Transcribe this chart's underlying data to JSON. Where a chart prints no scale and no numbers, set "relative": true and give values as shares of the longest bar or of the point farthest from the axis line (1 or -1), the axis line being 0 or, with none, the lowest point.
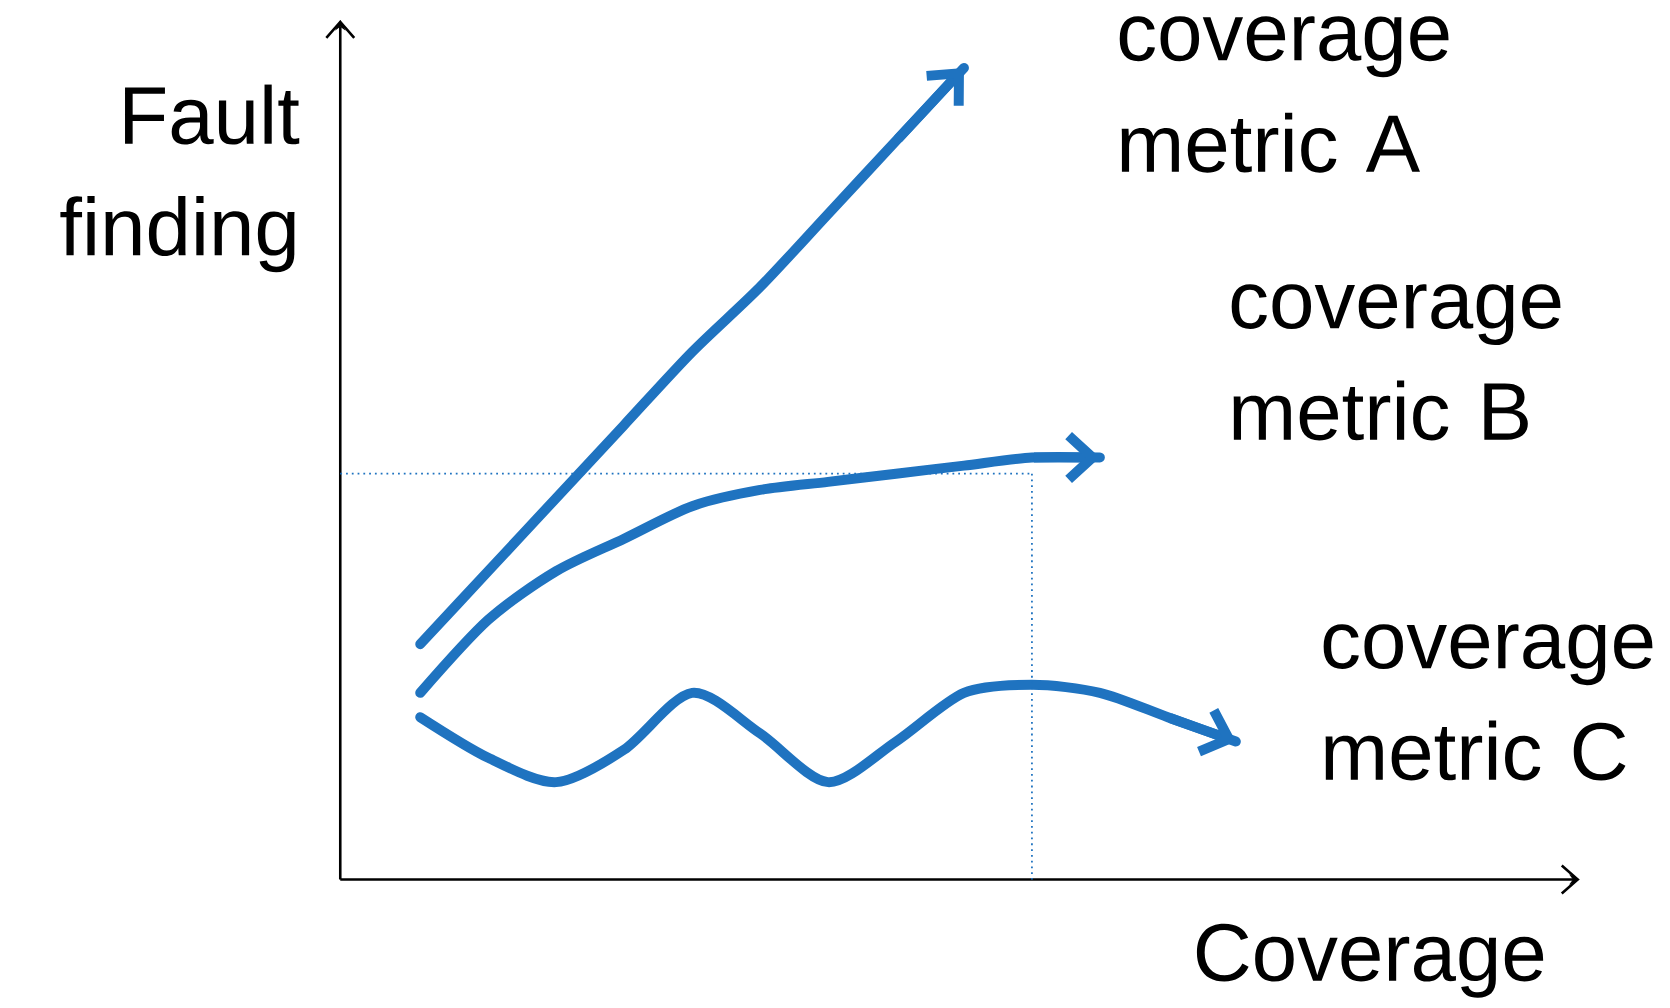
{
  "chart_data": {
    "type": "line",
    "relative": true,
    "xlabel": "Coverage",
    "ylabel": "Fault finding",
    "categories": [
      null,
      null,
      null,
      null,
      null,
      null,
      null,
      null,
      null,
      null,
      null,
      null,
      null
    ],
    "series": [
      {
        "name": "coverage metric A",
        "color": "#1f73c0",
        "values": [
          0.29,
          0.38,
          0.47,
          0.56,
          0.65,
          0.73,
          0.82,
          0.91,
          1.0,
          null,
          null,
          null,
          null
        ]
      },
      {
        "name": "coverage metric B",
        "color": "#1f73c0",
        "values": [
          0.23,
          0.32,
          0.38,
          0.42,
          0.46,
          0.48,
          0.49,
          0.5,
          0.51,
          0.52,
          0.52,
          null,
          null
        ]
      },
      {
        "name": "coverage metric C",
        "color": "#1f73c0",
        "values": [
          0.2,
          0.15,
          0.12,
          0.16,
          0.23,
          0.18,
          0.12,
          0.17,
          0.23,
          0.24,
          0.23,
          0.2,
          0.17
        ]
      }
    ],
    "ref_lines": [
      {
        "axis": "y",
        "value": 0.5,
        "color": "#1f73c0",
        "line_style": "dotted"
      }
    ],
    "marker": "none",
    "legend": "right"
  }
}
